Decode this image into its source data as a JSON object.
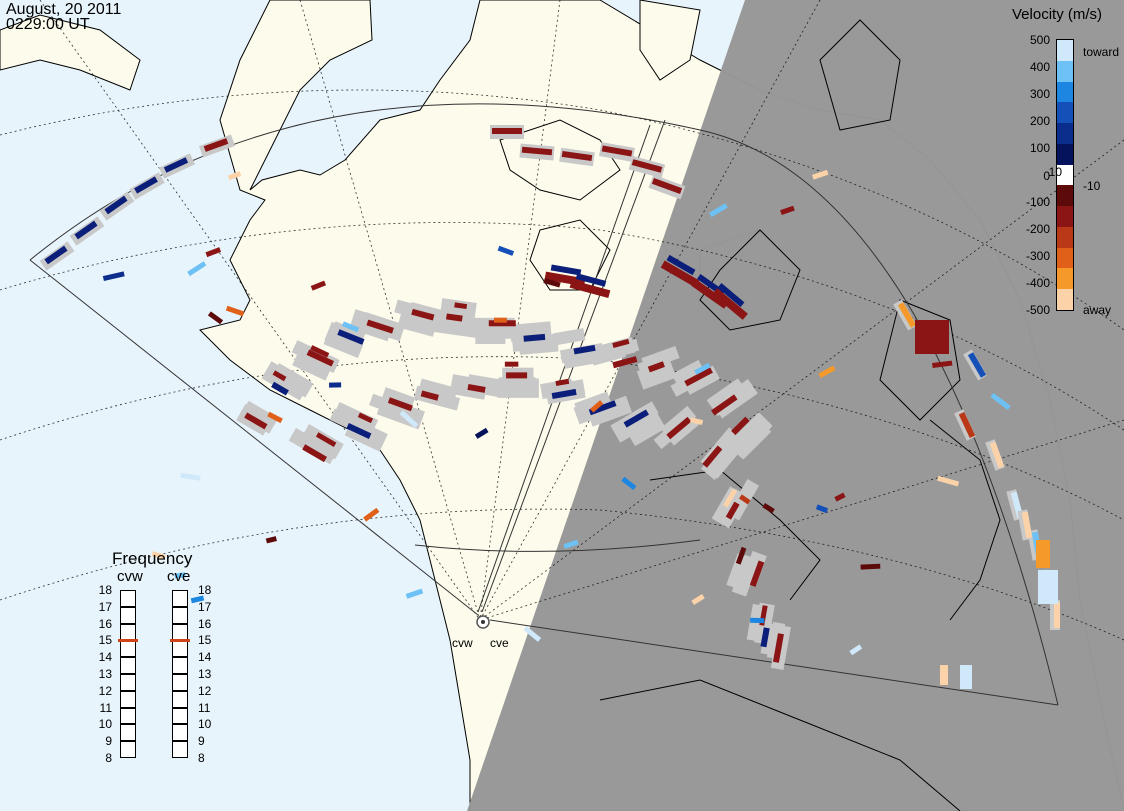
{
  "header": {
    "date": "August, 20 2011",
    "time": "0229:00 UT"
  },
  "colorbar": {
    "title": "Velocity (m/s)",
    "ticks": [
      "500",
      "400",
      "300",
      "200",
      "100",
      "10",
      "0",
      "-10",
      "-100",
      "-200",
      "-300",
      "-400",
      "-500"
    ],
    "toward_label": "toward",
    "away_label": "away",
    "colors": [
      "#cfe9fb",
      "#6ec1f4",
      "#1c86e0",
      "#1550b8",
      "#0b2e8c",
      "#05135c",
      "#ffffff",
      "#5c0a0a",
      "#8b1414",
      "#b83818",
      "#e0601a",
      "#f59a2a",
      "#fcd3a8"
    ]
  },
  "frequency": {
    "title": "Frequency",
    "radars": [
      "cvw",
      "cve"
    ],
    "scale": [
      "18",
      "17",
      "16",
      "15",
      "14",
      "13",
      "12",
      "11",
      "10",
      "9",
      "8"
    ],
    "cvw_value": 15,
    "cve_value": 15,
    "marker_color": "#d0441a"
  },
  "radars": {
    "cvw_label": "cvw",
    "cve_label": "cve"
  },
  "colors": {
    "ocean": "#e8f4fb",
    "land_day": "#fdfbeb",
    "night": "#979797",
    "scatter_grey": "#c8c8c8",
    "dark_red": "#8b1414",
    "dark_blue": "#0b1f7a"
  }
}
